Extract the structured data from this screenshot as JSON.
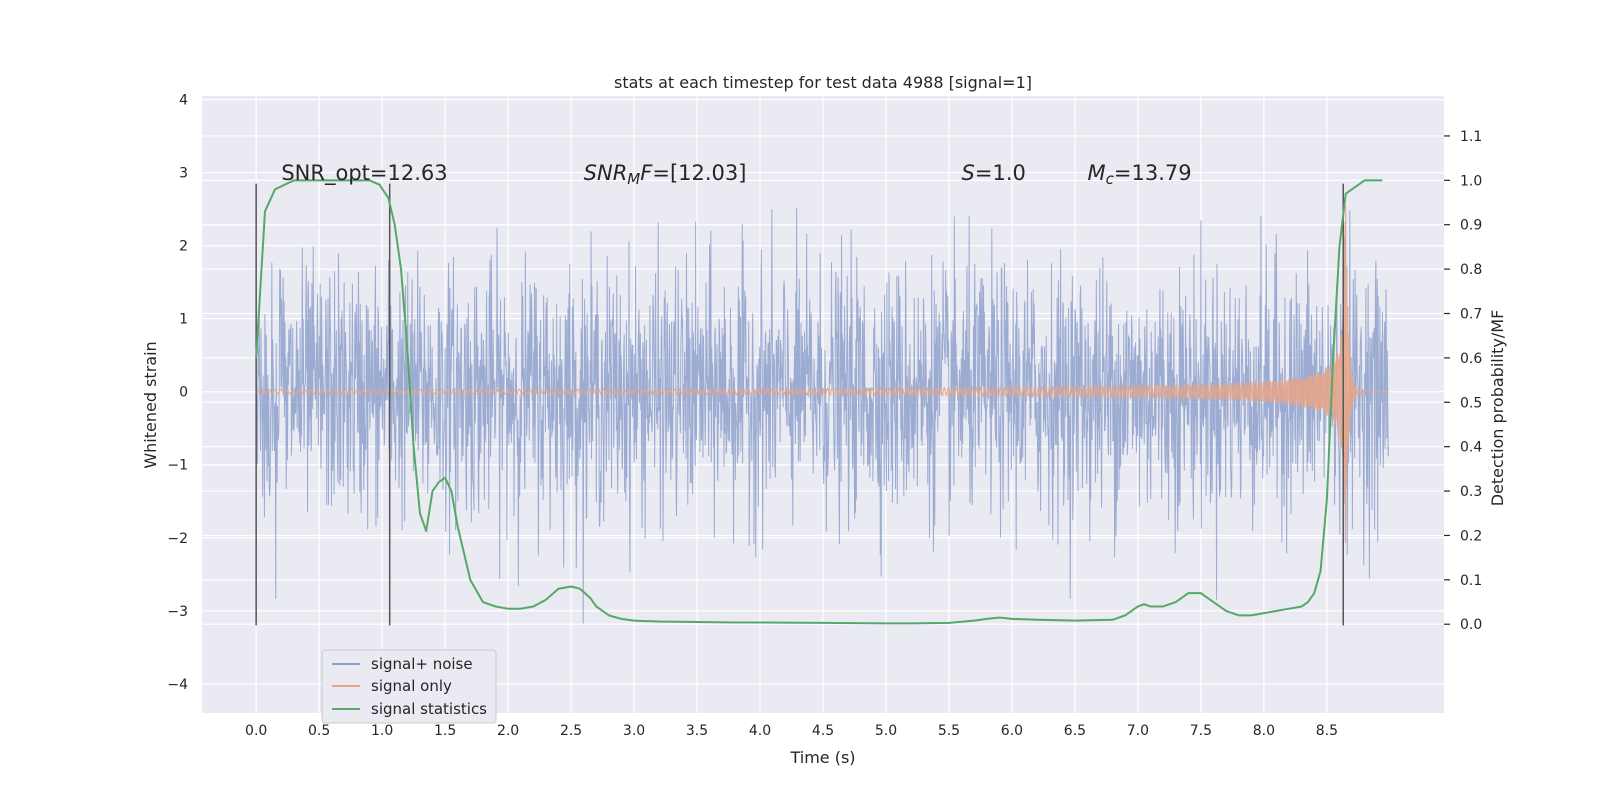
{
  "chart_data": {
    "type": "line",
    "title": "stats at each timestep for test data 4988 [signal=1]",
    "xlabel": "Time (s)",
    "ylabel_left": "Whitened strain",
    "ylabel_right": "Detection probability/MF",
    "xlim": [
      -0.43,
      9.43
    ],
    "ylim_left": [
      -4.4,
      4.05
    ],
    "ylim_right": [
      -0.2,
      1.19
    ],
    "x_ticks": [
      "0.0",
      "0.5",
      "1.0",
      "1.5",
      "2.0",
      "2.5",
      "3.0",
      "3.5",
      "4.0",
      "4.5",
      "5.0",
      "5.5",
      "6.0",
      "6.5",
      "7.0",
      "7.5",
      "8.0",
      "8.5"
    ],
    "x_tick_values": [
      0,
      0.5,
      1,
      1.5,
      2,
      2.5,
      3,
      3.5,
      4,
      4.5,
      5,
      5.5,
      6,
      6.5,
      7,
      7.5,
      8,
      8.5
    ],
    "y_ticks_left": [
      "4",
      "3",
      "2",
      "1",
      "0",
      "−1",
      "−2",
      "−3",
      "−4"
    ],
    "y_tick_values_left": [
      4,
      3,
      2,
      1,
      0,
      -1,
      -2,
      -3,
      -4
    ],
    "y_ticks_right": [
      "1.1",
      "1.0",
      "0.9",
      "0.8",
      "0.7",
      "0.6",
      "0.5",
      "0.4",
      "0.3",
      "0.2",
      "0.1",
      "0.0"
    ],
    "y_tick_values_right": [
      1.1,
      1.0,
      0.9,
      0.8,
      0.7,
      0.6,
      0.5,
      0.4,
      0.3,
      0.2,
      0.1,
      0.0
    ],
    "grid": true,
    "legend_position": "lower-left",
    "annotations": [
      {
        "base": "SNR_opt=12.63",
        "sub": "",
        "tail": "",
        "italic": false,
        "x": 0.2,
        "y": 2.9
      },
      {
        "base": "SNR",
        "sub": "M",
        "tail": "F=[12.03]",
        "italic": true,
        "x": 2.6,
        "y": 2.9
      },
      {
        "base": "S",
        "sub": "",
        "tail": "=1.0",
        "italic": true,
        "x": 5.6,
        "y": 2.9
      },
      {
        "base": "M",
        "sub": "c",
        "tail": "=13.79",
        "italic": true,
        "x": 6.6,
        "y": 2.9
      }
    ],
    "vertical_markers": {
      "x": [
        0.0,
        1.06,
        8.63
      ],
      "y_range": [
        -3.2,
        2.85
      ],
      "color": "#555555"
    },
    "series": [
      {
        "name": "signal+ noise",
        "color": "#8da0cb",
        "style": "noise",
        "x_range": [
          0.0,
          8.99
        ],
        "sigma": 0.85
      },
      {
        "name": "signal only",
        "color": "#e6a58a",
        "style": "chirp",
        "x_range": [
          0.0,
          8.99
        ],
        "merger_time": 8.65,
        "peak_amplitude": 2.55
      },
      {
        "name": "signal statistics",
        "color": "#55a868",
        "style": "line",
        "axis": "right",
        "x": [
          0.0,
          0.07,
          0.15,
          0.3,
          0.5,
          0.7,
          0.9,
          0.98,
          1.05,
          1.1,
          1.15,
          1.2,
          1.25,
          1.3,
          1.35,
          1.4,
          1.45,
          1.5,
          1.55,
          1.6,
          1.7,
          1.8,
          1.9,
          2.0,
          2.1,
          2.2,
          2.3,
          2.4,
          2.5,
          2.57,
          2.65,
          2.7,
          2.8,
          2.9,
          3.0,
          3.2,
          3.5,
          3.8,
          4.0,
          4.5,
          5.0,
          5.2,
          5.5,
          5.7,
          5.8,
          5.9,
          6.0,
          6.2,
          6.5,
          6.8,
          6.9,
          7.0,
          7.05,
          7.1,
          7.2,
          7.3,
          7.4,
          7.5,
          7.6,
          7.7,
          7.8,
          7.9,
          8.0,
          8.1,
          8.2,
          8.3,
          8.35,
          8.4,
          8.45,
          8.5,
          8.55,
          8.6,
          8.65,
          8.7,
          8.75,
          8.8,
          8.85,
          8.9,
          8.94
        ],
        "y": [
          0.6,
          0.93,
          0.98,
          1.0,
          1.0,
          1.0,
          1.0,
          0.99,
          0.96,
          0.9,
          0.8,
          0.62,
          0.4,
          0.25,
          0.21,
          0.3,
          0.32,
          0.33,
          0.3,
          0.22,
          0.1,
          0.05,
          0.04,
          0.035,
          0.035,
          0.04,
          0.055,
          0.08,
          0.085,
          0.08,
          0.06,
          0.04,
          0.02,
          0.012,
          0.008,
          0.006,
          0.005,
          0.004,
          0.004,
          0.003,
          0.002,
          0.002,
          0.003,
          0.008,
          0.012,
          0.015,
          0.012,
          0.01,
          0.008,
          0.01,
          0.02,
          0.04,
          0.045,
          0.04,
          0.04,
          0.05,
          0.07,
          0.07,
          0.05,
          0.03,
          0.02,
          0.02,
          0.025,
          0.03,
          0.035,
          0.04,
          0.05,
          0.07,
          0.12,
          0.28,
          0.6,
          0.85,
          0.97,
          0.98,
          0.99,
          1.0,
          1.0,
          1.0,
          1.0
        ]
      }
    ]
  }
}
